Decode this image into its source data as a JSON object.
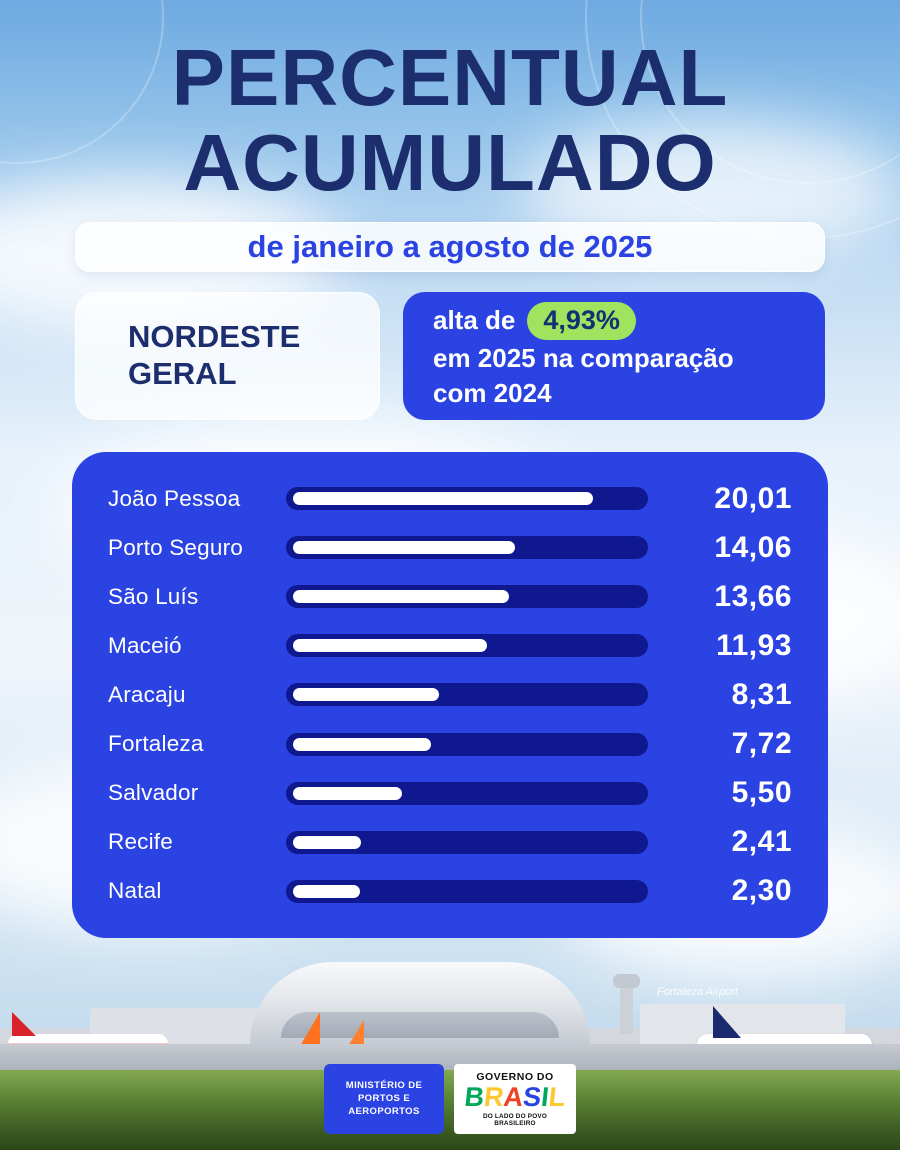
{
  "title": {
    "line1": "PERCENTUAL",
    "line2": "ACUMULADO"
  },
  "subtitle": "de janeiro a agosto de 2025",
  "region_card": {
    "line1": "NORDESTE",
    "line2": "GERAL"
  },
  "highlight_card": {
    "prefix": "alta de",
    "percent_badge": "4,93%",
    "line2": "em 2025 na comparação",
    "line3": "com 2024"
  },
  "chart_data": {
    "type": "bar",
    "orientation": "horizontal",
    "title": "Percentual acumulado de janeiro a agosto de 2025 — Nordeste Geral",
    "categories": [
      "João Pessoa",
      "Porto Seguro",
      "São Luís",
      "Maceió",
      "Aracaju",
      "Fortaleza",
      "Salvador",
      "Recife",
      "Natal"
    ],
    "values": [
      20.01,
      14.06,
      13.66,
      11.93,
      8.31,
      7.72,
      5.5,
      2.41,
      2.3
    ],
    "value_labels": [
      "20,01",
      "14,06",
      "13,66",
      "11,93",
      "8,31",
      "7,72",
      "5,50",
      "2,41",
      "2,30"
    ],
    "xlim": [
      0,
      20.01
    ],
    "legend": "none",
    "grid": false,
    "panel_color": "#2a43e2",
    "track_color": "#10188f",
    "bar_color": "#ffffff",
    "highlight_green": "#9fe35f",
    "badge_text_color": "#123173",
    "title_navy": "#1d2e6f"
  },
  "photo": {
    "airport_label": "Fortaleza Airport"
  },
  "footer": {
    "ministry_lines": [
      "MINISTÉRIO DE",
      "PORTOS E",
      "AEROPORTOS"
    ],
    "gov_top": "GOVERNO DO",
    "gov_brand_letters": [
      {
        "ch": "B",
        "color": "#00a859"
      },
      {
        "ch": "R",
        "color": "#fdc82f"
      },
      {
        "ch": "A",
        "color": "#ef4123"
      },
      {
        "ch": "S",
        "color": "#2a43e2"
      },
      {
        "ch": "I",
        "color": "#00a859"
      },
      {
        "ch": "L",
        "color": "#fdc82f"
      }
    ],
    "gov_tagline": "DO LADO DO POVO BRASILEIRO"
  }
}
